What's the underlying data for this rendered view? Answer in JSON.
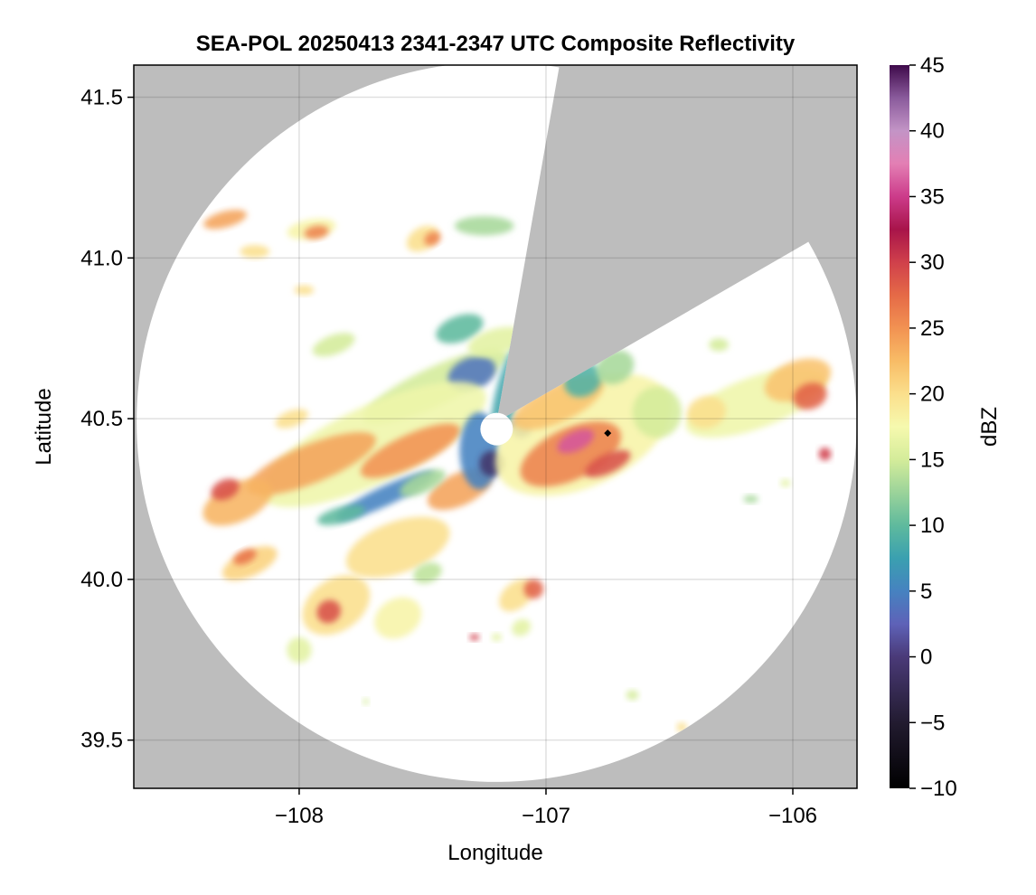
{
  "chart_data": {
    "type": "heatmap",
    "title": "SEA-POL 20250413 2341-2347 UTC Composite Reflectivity",
    "xlabel": "Longitude",
    "ylabel": "Latitude",
    "xlim": [
      -108.67,
      -105.74
    ],
    "ylim": [
      39.35,
      41.6
    ],
    "x_ticks": [
      -108,
      -107,
      -106
    ],
    "y_ticks": [
      39.5,
      40.0,
      40.5,
      41.0,
      41.5
    ],
    "x_tick_labels": [
      "−108",
      "−107",
      "−106"
    ],
    "y_tick_labels": [
      "39.5",
      "40.0",
      "40.5",
      "41.0",
      "41.5"
    ],
    "grid": true,
    "background_color": "#bdbdbd",
    "radar_center": {
      "lon": -107.2,
      "lat": 40.49
    },
    "radar_range_deg_lat": 1.12,
    "blocked_sectors_azimuth_deg": [
      [
        10,
        60
      ]
    ],
    "marker": {
      "lon": -106.75,
      "lat": 40.455,
      "symbol": "diamond",
      "color": "#000000"
    },
    "colorbar": {
      "label": "dBZ",
      "min": -10,
      "max": 45,
      "ticks": [
        -10,
        -5,
        0,
        5,
        10,
        15,
        20,
        25,
        30,
        35,
        40,
        45
      ],
      "tick_labels": [
        "−10",
        "−5",
        "0",
        "5",
        "10",
        "15",
        "20",
        "25",
        "30",
        "35",
        "40",
        "45"
      ],
      "colormap": "spectral_extended",
      "stops": [
        [
          -10,
          "#000000"
        ],
        [
          -5,
          "#221b30"
        ],
        [
          0,
          "#4a3a78"
        ],
        [
          2.5,
          "#5e62b8"
        ],
        [
          5,
          "#4682c0"
        ],
        [
          7.5,
          "#3aa0b0"
        ],
        [
          10,
          "#5fba9d"
        ],
        [
          12.5,
          "#9bd39a"
        ],
        [
          15,
          "#d4ec9a"
        ],
        [
          17.5,
          "#f6f9ae"
        ],
        [
          20,
          "#fbdf8c"
        ],
        [
          22.5,
          "#f8bc66"
        ],
        [
          25,
          "#f29252"
        ],
        [
          27.5,
          "#e56a47"
        ],
        [
          30,
          "#d0404b"
        ],
        [
          32.5,
          "#a8144a"
        ],
        [
          35,
          "#cc3b8a"
        ],
        [
          37.5,
          "#e37fb4"
        ],
        [
          40,
          "#c394c6"
        ],
        [
          42.5,
          "#8a5b9c"
        ],
        [
          45,
          "#3f0a4b"
        ]
      ]
    },
    "echo_regions": [
      {
        "lon": -108.3,
        "lat": 41.12,
        "rx": 0.09,
        "ry": 0.025,
        "angle": -15,
        "dbz": 24
      },
      {
        "lon": -108.18,
        "lat": 41.02,
        "rx": 0.06,
        "ry": 0.02,
        "angle": 0,
        "dbz": 20
      },
      {
        "lon": -107.95,
        "lat": 41.09,
        "rx": 0.1,
        "ry": 0.03,
        "angle": -10,
        "dbz": 18
      },
      {
        "lon": -107.93,
        "lat": 41.08,
        "rx": 0.05,
        "ry": 0.02,
        "angle": -10,
        "dbz": 26
      },
      {
        "lon": -107.5,
        "lat": 41.06,
        "rx": 0.07,
        "ry": 0.035,
        "angle": -30,
        "dbz": 20
      },
      {
        "lon": -107.46,
        "lat": 41.06,
        "rx": 0.035,
        "ry": 0.02,
        "angle": -30,
        "dbz": 26
      },
      {
        "lon": -107.25,
        "lat": 41.1,
        "rx": 0.12,
        "ry": 0.03,
        "angle": 0,
        "dbz": 13
      },
      {
        "lon": -107.98,
        "lat": 40.9,
        "rx": 0.04,
        "ry": 0.015,
        "angle": 0,
        "dbz": 20
      },
      {
        "lon": -107.86,
        "lat": 40.73,
        "rx": 0.09,
        "ry": 0.03,
        "angle": -20,
        "dbz": 15
      },
      {
        "lon": -107.45,
        "lat": 40.6,
        "rx": 0.32,
        "ry": 0.06,
        "angle": -25,
        "dbz": 15
      },
      {
        "lon": -107.3,
        "lat": 40.64,
        "rx": 0.1,
        "ry": 0.05,
        "angle": -20,
        "dbz": 4
      },
      {
        "lon": -107.35,
        "lat": 40.78,
        "rx": 0.1,
        "ry": 0.04,
        "angle": -20,
        "dbz": 10
      },
      {
        "lon": -107.7,
        "lat": 40.42,
        "rx": 0.5,
        "ry": 0.12,
        "angle": -25,
        "dbz": 17
      },
      {
        "lon": -107.95,
        "lat": 40.36,
        "rx": 0.28,
        "ry": 0.06,
        "angle": -22,
        "dbz": 24
      },
      {
        "lon": -107.55,
        "lat": 40.4,
        "rx": 0.22,
        "ry": 0.05,
        "angle": -25,
        "dbz": 25
      },
      {
        "lon": -108.25,
        "lat": 40.24,
        "rx": 0.15,
        "ry": 0.06,
        "angle": -25,
        "dbz": 23
      },
      {
        "lon": -108.3,
        "lat": 40.28,
        "rx": 0.06,
        "ry": 0.03,
        "angle": -25,
        "dbz": 29
      },
      {
        "lon": -107.65,
        "lat": 40.26,
        "rx": 0.22,
        "ry": 0.03,
        "angle": -25,
        "dbz": 5
      },
      {
        "lon": -107.83,
        "lat": 40.2,
        "rx": 0.1,
        "ry": 0.025,
        "angle": -15,
        "dbz": 10
      },
      {
        "lon": -107.35,
        "lat": 40.28,
        "rx": 0.14,
        "ry": 0.05,
        "angle": -25,
        "dbz": 24
      },
      {
        "lon": -107.27,
        "lat": 40.4,
        "rx": 0.08,
        "ry": 0.12,
        "angle": 0,
        "dbz": 5
      },
      {
        "lon": -107.22,
        "lat": 40.36,
        "rx": 0.05,
        "ry": 0.04,
        "angle": 0,
        "dbz": -1
      },
      {
        "lon": -107.1,
        "lat": 40.47,
        "rx": 0.04,
        "ry": 0.03,
        "angle": 0,
        "dbz": 1
      },
      {
        "lon": -107.15,
        "lat": 40.59,
        "rx": 0.05,
        "ry": 0.17,
        "angle": 15,
        "dbz": 8
      },
      {
        "lon": -107.2,
        "lat": 40.74,
        "rx": 0.12,
        "ry": 0.04,
        "angle": -15,
        "dbz": 16
      },
      {
        "lon": -106.85,
        "lat": 40.45,
        "rx": 0.38,
        "ry": 0.16,
        "angle": -25,
        "dbz": 18
      },
      {
        "lon": -106.9,
        "lat": 40.39,
        "rx": 0.22,
        "ry": 0.08,
        "angle": -25,
        "dbz": 26
      },
      {
        "lon": -106.88,
        "lat": 40.43,
        "rx": 0.08,
        "ry": 0.03,
        "angle": -25,
        "dbz": 36
      },
      {
        "lon": -106.75,
        "lat": 40.36,
        "rx": 0.1,
        "ry": 0.03,
        "angle": -25,
        "dbz": 29
      },
      {
        "lon": -106.95,
        "lat": 40.55,
        "rx": 0.2,
        "ry": 0.06,
        "angle": -25,
        "dbz": 22
      },
      {
        "lon": -106.85,
        "lat": 40.62,
        "rx": 0.08,
        "ry": 0.05,
        "angle": -30,
        "dbz": 9
      },
      {
        "lon": -106.72,
        "lat": 40.66,
        "rx": 0.08,
        "ry": 0.05,
        "angle": -30,
        "dbz": 13
      },
      {
        "lon": -106.55,
        "lat": 40.52,
        "rx": 0.1,
        "ry": 0.08,
        "angle": 0,
        "dbz": 15
      },
      {
        "lon": -106.15,
        "lat": 40.55,
        "rx": 0.3,
        "ry": 0.08,
        "angle": -20,
        "dbz": 17
      },
      {
        "lon": -105.98,
        "lat": 40.62,
        "rx": 0.14,
        "ry": 0.06,
        "angle": -20,
        "dbz": 22
      },
      {
        "lon": -105.93,
        "lat": 40.57,
        "rx": 0.07,
        "ry": 0.04,
        "angle": -20,
        "dbz": 28
      },
      {
        "lon": -106.3,
        "lat": 40.73,
        "rx": 0.04,
        "ry": 0.02,
        "angle": 0,
        "dbz": 15
      },
      {
        "lon": -106.35,
        "lat": 40.52,
        "rx": 0.08,
        "ry": 0.05,
        "angle": -15,
        "dbz": 20
      },
      {
        "lon": -105.87,
        "lat": 40.39,
        "rx": 0.025,
        "ry": 0.02,
        "angle": 0,
        "dbz": 30
      },
      {
        "lon": -106.17,
        "lat": 40.25,
        "rx": 0.03,
        "ry": 0.012,
        "angle": 0,
        "dbz": 13
      },
      {
        "lon": -106.03,
        "lat": 40.3,
        "rx": 0.02,
        "ry": 0.012,
        "angle": 0,
        "dbz": 16
      },
      {
        "lon": -108.03,
        "lat": 40.5,
        "rx": 0.07,
        "ry": 0.025,
        "angle": -20,
        "dbz": 20
      },
      {
        "lon": -108.2,
        "lat": 40.05,
        "rx": 0.12,
        "ry": 0.04,
        "angle": -25,
        "dbz": 21
      },
      {
        "lon": -108.22,
        "lat": 40.07,
        "rx": 0.05,
        "ry": 0.02,
        "angle": -25,
        "dbz": 27
      },
      {
        "lon": -107.85,
        "lat": 39.92,
        "rx": 0.15,
        "ry": 0.08,
        "angle": -35,
        "dbz": 20
      },
      {
        "lon": -107.88,
        "lat": 39.9,
        "rx": 0.05,
        "ry": 0.035,
        "angle": -35,
        "dbz": 29
      },
      {
        "lon": -107.6,
        "lat": 39.88,
        "rx": 0.1,
        "ry": 0.06,
        "angle": -30,
        "dbz": 18
      },
      {
        "lon": -107.6,
        "lat": 40.1,
        "rx": 0.22,
        "ry": 0.08,
        "angle": -20,
        "dbz": 20
      },
      {
        "lon": -107.48,
        "lat": 40.02,
        "rx": 0.06,
        "ry": 0.03,
        "angle": -20,
        "dbz": 14
      },
      {
        "lon": -108.0,
        "lat": 39.78,
        "rx": 0.05,
        "ry": 0.04,
        "angle": 0,
        "dbz": 16
      },
      {
        "lon": -107.12,
        "lat": 39.95,
        "rx": 0.08,
        "ry": 0.04,
        "angle": -40,
        "dbz": 20
      },
      {
        "lon": -107.05,
        "lat": 39.97,
        "rx": 0.04,
        "ry": 0.03,
        "angle": -40,
        "dbz": 28
      },
      {
        "lon": -107.1,
        "lat": 39.85,
        "rx": 0.04,
        "ry": 0.025,
        "angle": -30,
        "dbz": 16
      },
      {
        "lon": -107.29,
        "lat": 39.82,
        "rx": 0.02,
        "ry": 0.01,
        "angle": 0,
        "dbz": 30
      },
      {
        "lon": -107.2,
        "lat": 39.82,
        "rx": 0.02,
        "ry": 0.012,
        "angle": 0,
        "dbz": 16
      },
      {
        "lon": -106.65,
        "lat": 39.64,
        "rx": 0.025,
        "ry": 0.015,
        "angle": 0,
        "dbz": 15
      },
      {
        "lon": -106.45,
        "lat": 39.54,
        "rx": 0.02,
        "ry": 0.015,
        "angle": 0,
        "dbz": 20
      },
      {
        "lon": -106.32,
        "lat": 39.57,
        "rx": 0.02,
        "ry": 0.012,
        "angle": 0,
        "dbz": 16
      },
      {
        "lon": -107.73,
        "lat": 39.62,
        "rx": 0.012,
        "ry": 0.01,
        "angle": 0,
        "dbz": 15
      },
      {
        "lon": -107.5,
        "lat": 40.3,
        "rx": 0.1,
        "ry": 0.03,
        "angle": -25,
        "dbz": 13
      }
    ]
  }
}
